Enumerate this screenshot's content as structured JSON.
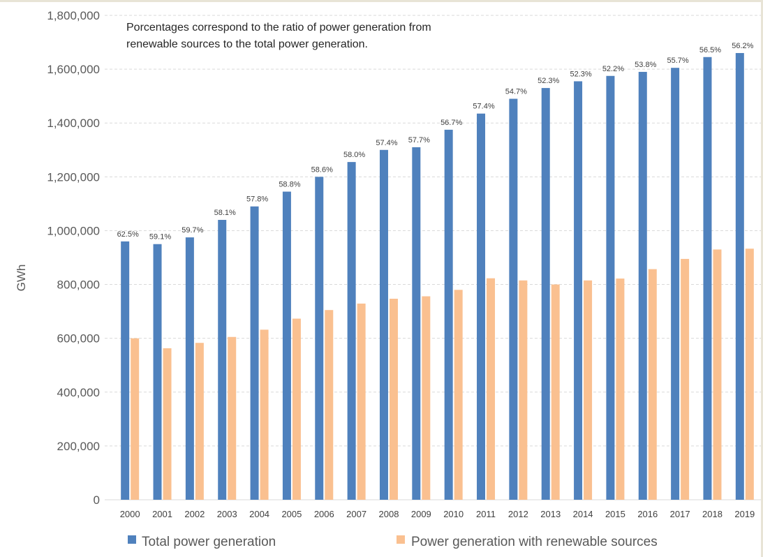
{
  "chart_data": {
    "type": "bar",
    "ylabel": "GWh",
    "ylim": [
      0,
      1800000
    ],
    "yticks": [
      "0",
      "200,000",
      "400,000",
      "600,000",
      "800,000",
      "1,000,000",
      "1,200,000",
      "1,400,000",
      "1,600,000",
      "1,800,000"
    ],
    "grid": true,
    "legend_position": "bottom",
    "annotation": [
      "Porcentages correspond to the ratio of power generation from",
      "renewable sources to the total power generation."
    ],
    "categories": [
      "2000",
      "2001",
      "2002",
      "2003",
      "2004",
      "2005",
      "2006",
      "2007",
      "2008",
      "2009",
      "2010",
      "2011",
      "2012",
      "2013",
      "2014",
      "2015",
      "2016",
      "2017",
      "2018",
      "2019"
    ],
    "series": [
      {
        "name": "Total power generation",
        "color": "#4f81bd",
        "values": [
          960000,
          950000,
          975000,
          1040000,
          1090000,
          1145000,
          1200000,
          1255000,
          1300000,
          1310000,
          1375000,
          1435000,
          1490000,
          1530000,
          1555000,
          1575000,
          1590000,
          1605000,
          1645000,
          1660000
        ],
        "labels": [
          "62.5%",
          "59.1%",
          "59.7%",
          "58.1%",
          "57.8%",
          "58.8%",
          "58.6%",
          "58.0%",
          "57.4%",
          "57.7%",
          "56.7%",
          "57.4%",
          "54.7%",
          "52.3%",
          "52.3%",
          "52.2%",
          "53.8%",
          "55.7%",
          "56.5%",
          "56.2%"
        ]
      },
      {
        "name": "Power generation with renewable sources",
        "color": "#fac090",
        "values": [
          600000,
          563000,
          583000,
          605000,
          632000,
          673000,
          705000,
          729000,
          747000,
          756000,
          780000,
          823000,
          815000,
          800000,
          815000,
          822000,
          857000,
          895000,
          930000,
          933000
        ]
      }
    ]
  }
}
